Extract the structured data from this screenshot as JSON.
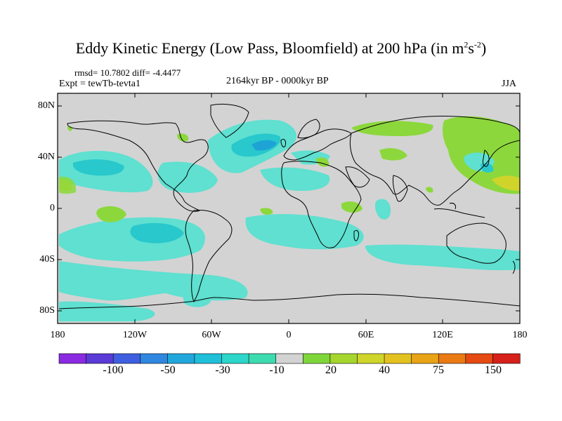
{
  "figure": {
    "title_main": "Eddy Kinetic Energy (Low Pass, Bloomfield) at 200 hPa (in m",
    "title_sup1": "2",
    "title_mid": "s",
    "title_sup2": "-2",
    "title_end": ")",
    "stats": "rmsd= 10.7802 diff= -4.4477",
    "experiment": "Expt = tewTb-tevta1",
    "period": "2164kyr BP - 0000kyr BP",
    "season": "JJA"
  },
  "map": {
    "lat_labels": [
      "80N",
      "40N",
      "0",
      "40S",
      "80S"
    ],
    "lon_labels": [
      "180",
      "120W",
      "60W",
      "0",
      "60E",
      "120E",
      "180"
    ],
    "background_color": "#d3d3d3",
    "coast_color": "#000000"
  },
  "colorbar": {
    "colors": [
      "#8a2be2",
      "#5b3bd6",
      "#3f5fe0",
      "#2f87df",
      "#22a7dc",
      "#1fc0d8",
      "#2cd6c8",
      "#3ddcb0",
      "#d3d3d3",
      "#7fd63a",
      "#a6d62e",
      "#cfd52a",
      "#e3c21f",
      "#e8a317",
      "#ea7a14",
      "#e44a12",
      "#d6201a"
    ],
    "labels": [
      "-100",
      "-50",
      "-30",
      "-10",
      "20",
      "40",
      "75",
      "150"
    ]
  },
  "field_colors": {
    "neg_light": "#5fe0d0",
    "neg_mid": "#28c8cc",
    "neg_strong": "#1ea3d6",
    "pos_light": "#8cd83c",
    "pos_strong": "#d0d42a"
  }
}
